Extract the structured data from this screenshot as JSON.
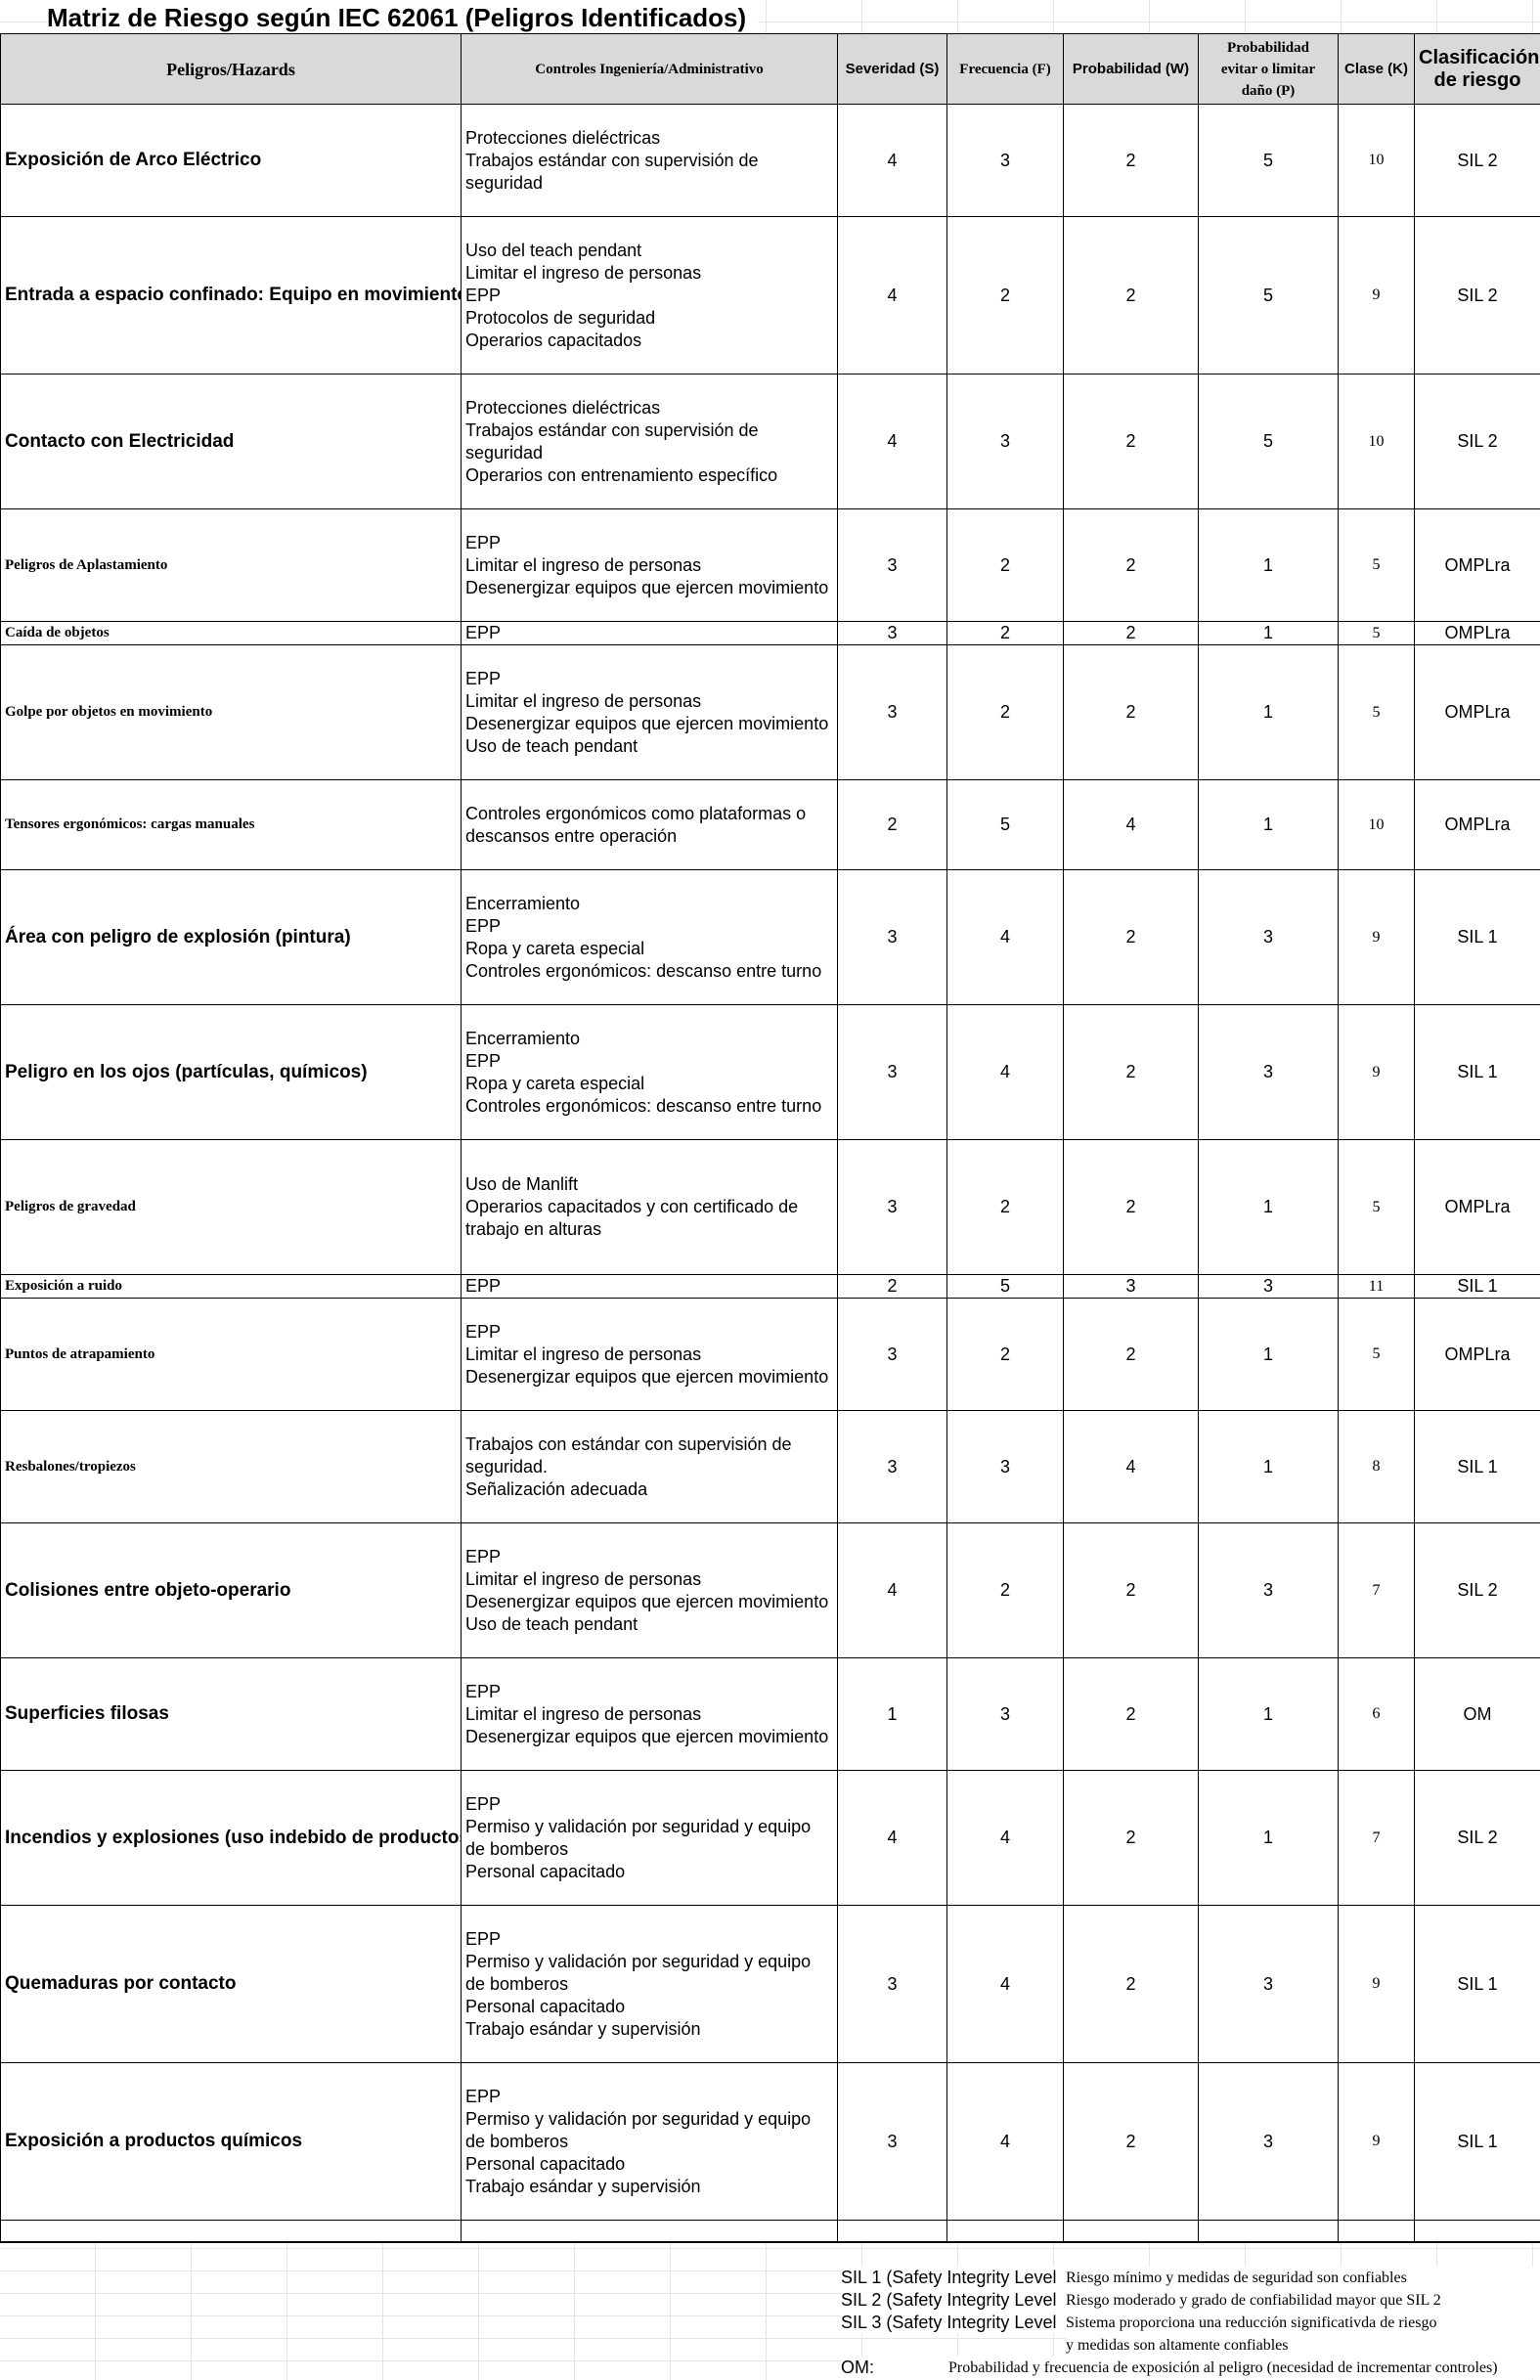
{
  "title": "Matriz de Riesgo según IEC 62061 (Peligros Identificados)",
  "headers": {
    "hazard": "Peligros/Hazards",
    "controls": "Controles Ingeniería/Administrativo",
    "severity": "Severidad (S)",
    "frequency": "Frecuencia (F)",
    "probability": "Probabilidad (W)",
    "avoid_1": "Probabilidad",
    "avoid_2": "evitar o limitar",
    "avoid_3": "daño (P)",
    "class": "Clase (K)",
    "classification_1": "Clasificación",
    "classification_2": "de riesgo"
  },
  "rows": [
    {
      "hazard": "Exposición de Arco Eléctrico",
      "controls": [
        "Protecciones dieléctricas",
        "Trabajos estándar con supervisión de seguridad"
      ],
      "s": "4",
      "f": "3",
      "w": "2",
      "p": "5",
      "k": "10",
      "cls": "SIL 2"
    },
    {
      "hazard": "Entrada a espacio confinado: Equipo en movimiento",
      "controls": [
        "Uso del teach pendant",
        "Limitar el ingreso de personas",
        "EPP",
        "Protocolos de seguridad",
        "Operarios capacitados"
      ],
      "s": "4",
      "f": "2",
      "w": "2",
      "p": "5",
      "k": "9",
      "cls": "SIL 2"
    },
    {
      "hazard": "Contacto con Electricidad",
      "controls": [
        "Protecciones dieléctricas",
        "Trabajos estándar con supervisión de seguridad",
        "Operarios con entrenamiento específico"
      ],
      "s": "4",
      "f": "3",
      "w": "2",
      "p": "5",
      "k": "10",
      "cls": "SIL 2"
    },
    {
      "hazard": "Peligros de Aplastamiento",
      "controls": [
        "EPP",
        "Limitar el ingreso de personas",
        "Desenergizar equipos que ejercen movimiento"
      ],
      "s": "3",
      "f": "2",
      "w": "2",
      "p": "1",
      "k": "5",
      "cls": "OMPLra"
    },
    {
      "hazard": "Caída de objetos",
      "controls": [
        "EPP"
      ],
      "s": "3",
      "f": "2",
      "w": "2",
      "p": "1",
      "k": "5",
      "cls": "OMPLra"
    },
    {
      "hazard": "Golpe por objetos en movimiento",
      "controls": [
        "EPP",
        "Limitar el ingreso de personas",
        "Desenergizar equipos que ejercen movimiento",
        "Uso de teach pendant"
      ],
      "s": "3",
      "f": "2",
      "w": "2",
      "p": "1",
      "k": "5",
      "cls": "OMPLra"
    },
    {
      "hazard": "Tensores ergonómicos: cargas manuales",
      "controls": [
        "Controles ergonómicos como plataformas o descansos entre operación"
      ],
      "s": "2",
      "f": "5",
      "w": "4",
      "p": "1",
      "k": "10",
      "cls": "OMPLra"
    },
    {
      "hazard": "Área con peligro de explosión (pintura)",
      "controls": [
        "Encerramiento",
        "EPP",
        "Ropa y careta especial",
        "Controles ergonómicos: descanso entre turno"
      ],
      "s": "3",
      "f": "4",
      "w": "2",
      "p": "3",
      "k": "9",
      "cls": "SIL 1"
    },
    {
      "hazard": "Peligro en los ojos (partículas, químicos)",
      "controls": [
        "Encerramiento",
        "EPP",
        "Ropa y careta especial",
        "Controles ergonómicos: descanso entre turno"
      ],
      "s": "3",
      "f": "4",
      "w": "2",
      "p": "3",
      "k": "9",
      "cls": "SIL 1"
    },
    {
      "hazard": "Peligros de gravedad",
      "controls": [
        "Uso de Manlift",
        "Operarios capacitados y con certificado de trabajo en alturas"
      ],
      "s": "3",
      "f": "2",
      "w": "2",
      "p": "1",
      "k": "5",
      "cls": "OMPLra"
    },
    {
      "hazard": "Exposición a ruido",
      "controls": [
        "EPP"
      ],
      "s": "2",
      "f": "5",
      "w": "3",
      "p": "3",
      "k": "11",
      "cls": "SIL 1"
    },
    {
      "hazard": "Puntos de atrapamiento",
      "controls": [
        "EPP",
        "Limitar el ingreso de personas",
        "Desenergizar equipos que ejercen movimiento"
      ],
      "s": "3",
      "f": "2",
      "w": "2",
      "p": "1",
      "k": "5",
      "cls": "OMPLra"
    },
    {
      "hazard": "Resbalones/tropiezos",
      "controls": [
        "Trabajos con estándar con supervisión de seguridad.",
        "Señalización adecuada"
      ],
      "s": "3",
      "f": "3",
      "w": "4",
      "p": "1",
      "k": "8",
      "cls": "SIL 1"
    },
    {
      "hazard": "Colisiones entre objeto-operario",
      "controls": [
        "EPP",
        "Limitar el ingreso de personas",
        "Desenergizar equipos que ejercen movimiento",
        "Uso de teach pendant"
      ],
      "s": "4",
      "f": "2",
      "w": "2",
      "p": "3",
      "k": "7",
      "cls": "SIL 2"
    },
    {
      "hazard": "Superficies filosas",
      "controls": [
        "EPP",
        "Limitar el ingreso de personas",
        "Desenergizar equipos que ejercen movimiento"
      ],
      "s": "1",
      "f": "3",
      "w": "2",
      "p": "1",
      "k": "6",
      "cls": "OM"
    },
    {
      "hazard": "Incendios y explosiones (uso indebido de productos q",
      "controls": [
        "EPP",
        "Permiso y validación por seguridad y equipo de bomberos",
        "Personal capacitado"
      ],
      "s": "4",
      "f": "4",
      "w": "2",
      "p": "1",
      "k": "7",
      "cls": "SIL 2"
    },
    {
      "hazard": "Quemaduras por contacto",
      "controls": [
        "EPP",
        "Permiso y validación por seguridad y equipo de bomberos",
        "Personal capacitado",
        "Trabajo esándar y supervisión"
      ],
      "s": "3",
      "f": "4",
      "w": "2",
      "p": "3",
      "k": "9",
      "cls": "SIL 1"
    },
    {
      "hazard": "Exposición a productos químicos",
      "controls": [
        "EPP",
        "Permiso y validación por seguridad y equipo de bomberos",
        "Personal capacitado",
        "Trabajo esándar y supervisión"
      ],
      "s": "3",
      "f": "4",
      "w": "2",
      "p": "3",
      "k": "9",
      "cls": "SIL 1"
    }
  ],
  "legend": [
    {
      "key": "SIL 1 (Safety Integrity Level",
      "desc": "Riesgo mínimo y medidas de seguridad son confiables"
    },
    {
      "key": "SIL 2 (Safety Integrity Level",
      "desc": "Riesgo moderado y grado de confiabilidad mayor que SIL 2"
    },
    {
      "key": "SIL 3 (Safety Integrity Level",
      "desc": "Sistema proporciona una reducción significativda de riesgo"
    },
    {
      "key": "",
      "desc": "y medidas son altamente confiables"
    },
    {
      "key": "OM:",
      "desc": "Probabilidad y frecuencia de exposición al peligro (necesidad de incrementar controles)"
    }
  ]
}
